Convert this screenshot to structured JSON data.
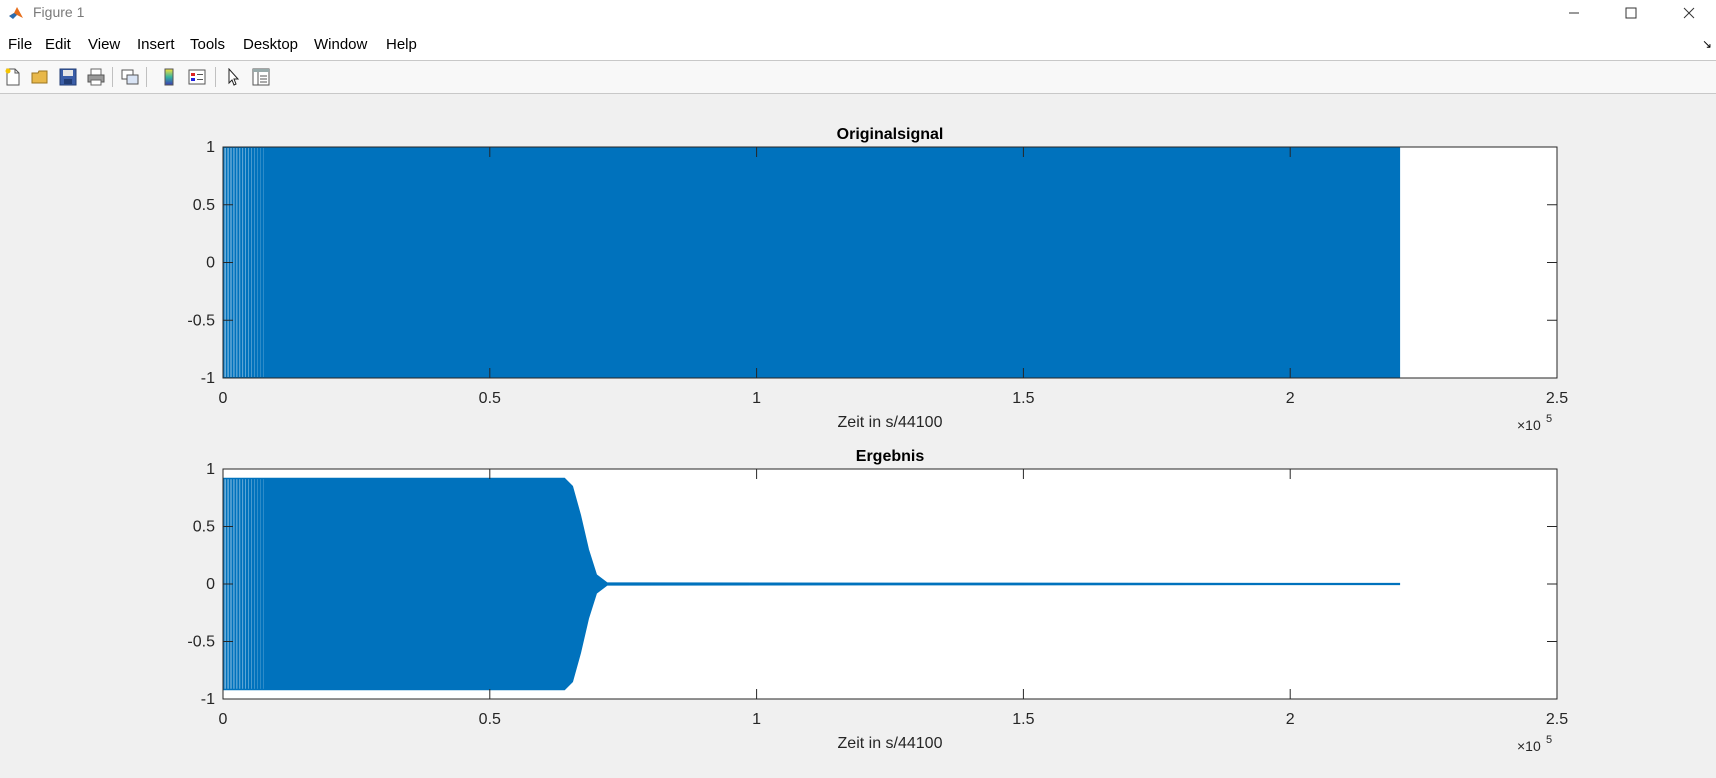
{
  "window": {
    "title": "Figure 1",
    "app_icon": "matlab-icon",
    "controls": [
      "minimize-icon",
      "maximize-icon",
      "close-icon"
    ]
  },
  "menu": {
    "items": [
      {
        "label": "File"
      },
      {
        "label": "Edit"
      },
      {
        "label": "View"
      },
      {
        "label": "Insert"
      },
      {
        "label": "Tools"
      },
      {
        "label": "Desktop"
      },
      {
        "label": "Window"
      },
      {
        "label": "Help"
      }
    ],
    "dock_icon": "dock-arrow-icon"
  },
  "toolbar": {
    "buttons": [
      {
        "icon": "new-figure-icon"
      },
      {
        "icon": "open-file-icon"
      },
      {
        "icon": "save-icon"
      },
      {
        "icon": "print-icon"
      },
      {
        "icon": "link-plot-icon"
      },
      {
        "icon": "insert-colorbar-icon"
      },
      {
        "icon": "insert-legend-icon"
      },
      {
        "icon": "edit-plot-icon"
      },
      {
        "icon": "open-property-inspector-icon"
      }
    ]
  },
  "colors": {
    "signal": "#0072bd",
    "axes": "#262626",
    "plot_background": "#ffffff",
    "figure_background": "#f0f0f0"
  },
  "chart_data": [
    {
      "type": "line",
      "title": "Originalsignal",
      "xlabel": "Zeit in s/44100",
      "ylabel": "",
      "xlim": [
        0,
        250000
      ],
      "ylim": [
        -1,
        1
      ],
      "x_ticks": [
        0,
        50000,
        100000,
        150000,
        200000,
        250000
      ],
      "x_tick_labels": [
        "0",
        "0.5",
        "1",
        "1.5",
        "2",
        "2.5"
      ],
      "y_ticks": [
        1,
        0.5,
        0,
        -0.5,
        -1
      ],
      "y_tick_labels": [
        "1",
        "0.5",
        "0",
        "-0.5",
        "-1"
      ],
      "x_exponent": "5",
      "grid": false,
      "series": [
        {
          "style": "dense oscillation (amplitude envelope)",
          "x": [
            0,
            220500
          ],
          "upper": [
            1,
            1
          ],
          "lower": [
            -1,
            -1
          ]
        }
      ]
    },
    {
      "type": "line",
      "title": "Ergebnis",
      "xlabel": "Zeit in s/44100",
      "ylabel": "",
      "xlim": [
        0,
        250000
      ],
      "ylim": [
        -1,
        1
      ],
      "x_ticks": [
        0,
        50000,
        100000,
        150000,
        200000,
        250000
      ],
      "x_tick_labels": [
        "0",
        "0.5",
        "1",
        "1.5",
        "2",
        "2.5"
      ],
      "y_ticks": [
        1,
        0.5,
        0,
        -0.5,
        -1
      ],
      "y_tick_labels": [
        "1",
        "0.5",
        "0",
        "-0.5",
        "-1"
      ],
      "x_exponent": "5",
      "grid": false,
      "series": [
        {
          "style": "dense oscillation (amplitude envelope)",
          "x": [
            0,
            64000,
            65500,
            67000,
            68500,
            70000,
            72000,
            220500
          ],
          "upper": [
            0.92,
            0.92,
            0.85,
            0.6,
            0.3,
            0.08,
            0.01,
            0.005
          ],
          "lower": [
            -0.92,
            -0.92,
            -0.85,
            -0.6,
            -0.3,
            -0.08,
            -0.01,
            -0.005
          ]
        }
      ]
    }
  ]
}
